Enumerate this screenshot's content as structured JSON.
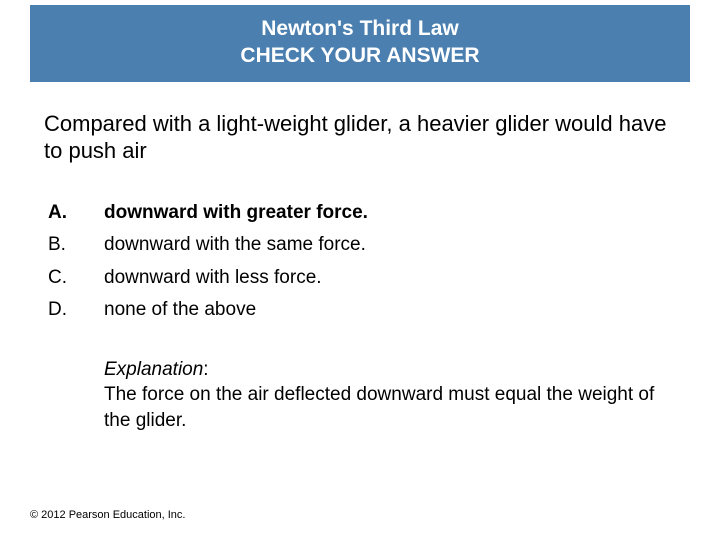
{
  "header": {
    "title": "Newton's Third Law",
    "subtitle": "CHECK YOUR ANSWER",
    "background_color": "#4a7fb0",
    "text_color": "#ffffff"
  },
  "question": "Compared with a light-weight glider, a heavier glider would have to push air",
  "options": [
    {
      "letter": "A.",
      "text": "downward with greater force.",
      "bold": true
    },
    {
      "letter": "B.",
      "text": "downward with the same force.",
      "bold": false
    },
    {
      "letter": "C.",
      "text": "downward with less force.",
      "bold": false
    },
    {
      "letter": "D.",
      "text": "none of the above",
      "bold": false
    }
  ],
  "explanation": {
    "label": "Explanation",
    "text": "The force on the air deflected downward must equal the weight of the glider."
  },
  "footer": "© 2012 Pearson Education, Inc."
}
